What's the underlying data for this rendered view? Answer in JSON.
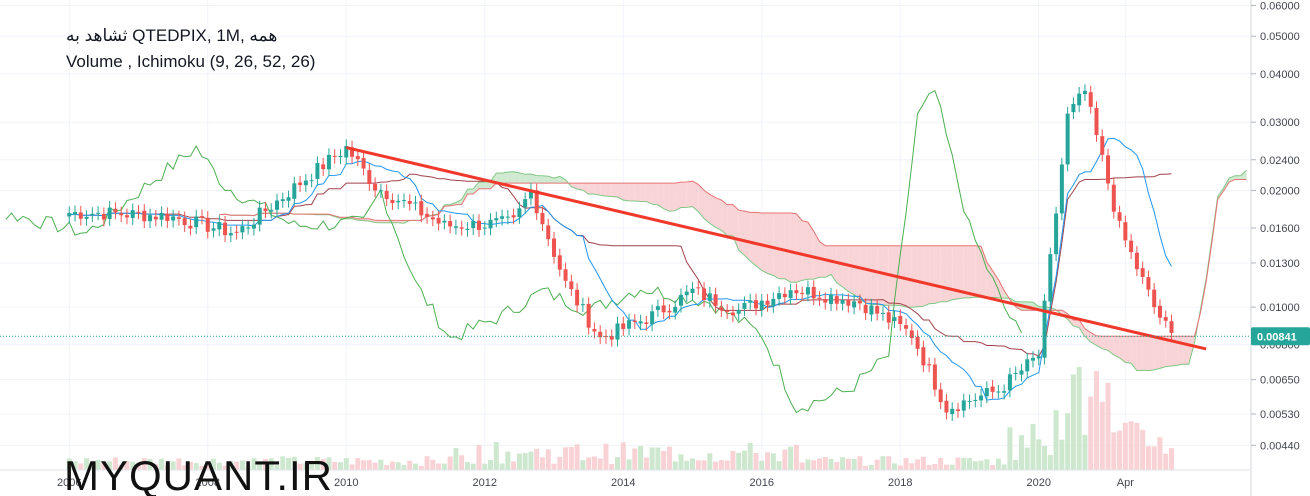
{
  "legend": {
    "line1": "ثشاهد به QTEDPIX, 1M, همه",
    "line2": "Volume , Ichimoku (9, 26, 52, 26)"
  },
  "watermark": "MYQUANT.IR",
  "current_price": "0.00841",
  "colors": {
    "up": "#26a69a",
    "down": "#ef5350",
    "trendline": "#f0392b",
    "tenkan": "#2196f3",
    "kijun": "#a1424a",
    "lagging": "#4caf50",
    "cloud_bear": "#f8cdd0",
    "cloud_bull": "#c8e6c9",
    "price_line": "#26a69a"
  },
  "chart_data": {
    "type": "candlestick",
    "y_scale": "log",
    "ylim": [
      0.0038,
      0.062
    ],
    "y_ticks": [
      "0.06000",
      "0.05000",
      "0.04000",
      "0.03000",
      "0.02400",
      "0.02000",
      "0.01600",
      "0.01300",
      "0.01000",
      "0.00800",
      "0.00650",
      "0.00530",
      "0.00440"
    ],
    "x_ticks": [
      "2006",
      "2008",
      "2010",
      "2012",
      "2014",
      "2016",
      "2018",
      "2020",
      "Apr"
    ],
    "series": [
      {
        "name": "QTEDPIX",
        "kind": "ohlc_close",
        "points": [
          [
            "2006-06",
            0.0175
          ],
          [
            "2007-06",
            0.0172
          ],
          [
            "2008-06",
            0.0155
          ],
          [
            "2009-06",
            0.0215
          ],
          [
            "2010-01",
            0.0258
          ],
          [
            "2010-06",
            0.0205
          ],
          [
            "2011-06",
            0.0162
          ],
          [
            "2012-06",
            0.0165
          ],
          [
            "2012-09",
            0.02
          ],
          [
            "2013-03",
            0.0115
          ],
          [
            "2013-09",
            0.0083
          ],
          [
            "2014-06",
            0.0095
          ],
          [
            "2015-01",
            0.011
          ],
          [
            "2015-09",
            0.0098
          ],
          [
            "2016-06",
            0.0112
          ],
          [
            "2017-06",
            0.0103
          ],
          [
            "2018-03",
            0.0085
          ],
          [
            "2018-09",
            0.0055
          ],
          [
            "2019-06",
            0.0061
          ],
          [
            "2020-01",
            0.0075
          ],
          [
            "2020-06",
            0.031
          ],
          [
            "2020-09",
            0.036
          ],
          [
            "2021-03",
            0.016
          ],
          [
            "2021-09",
            0.01
          ],
          [
            "2021-12",
            0.00841
          ]
        ]
      }
    ],
    "trendline": {
      "from": [
        "2010-01",
        0.0258
      ],
      "to": [
        "2022-06",
        0.0078
      ]
    },
    "indicators": [
      "Volume",
      "Ichimoku (9, 26, 52, 26)"
    ]
  }
}
